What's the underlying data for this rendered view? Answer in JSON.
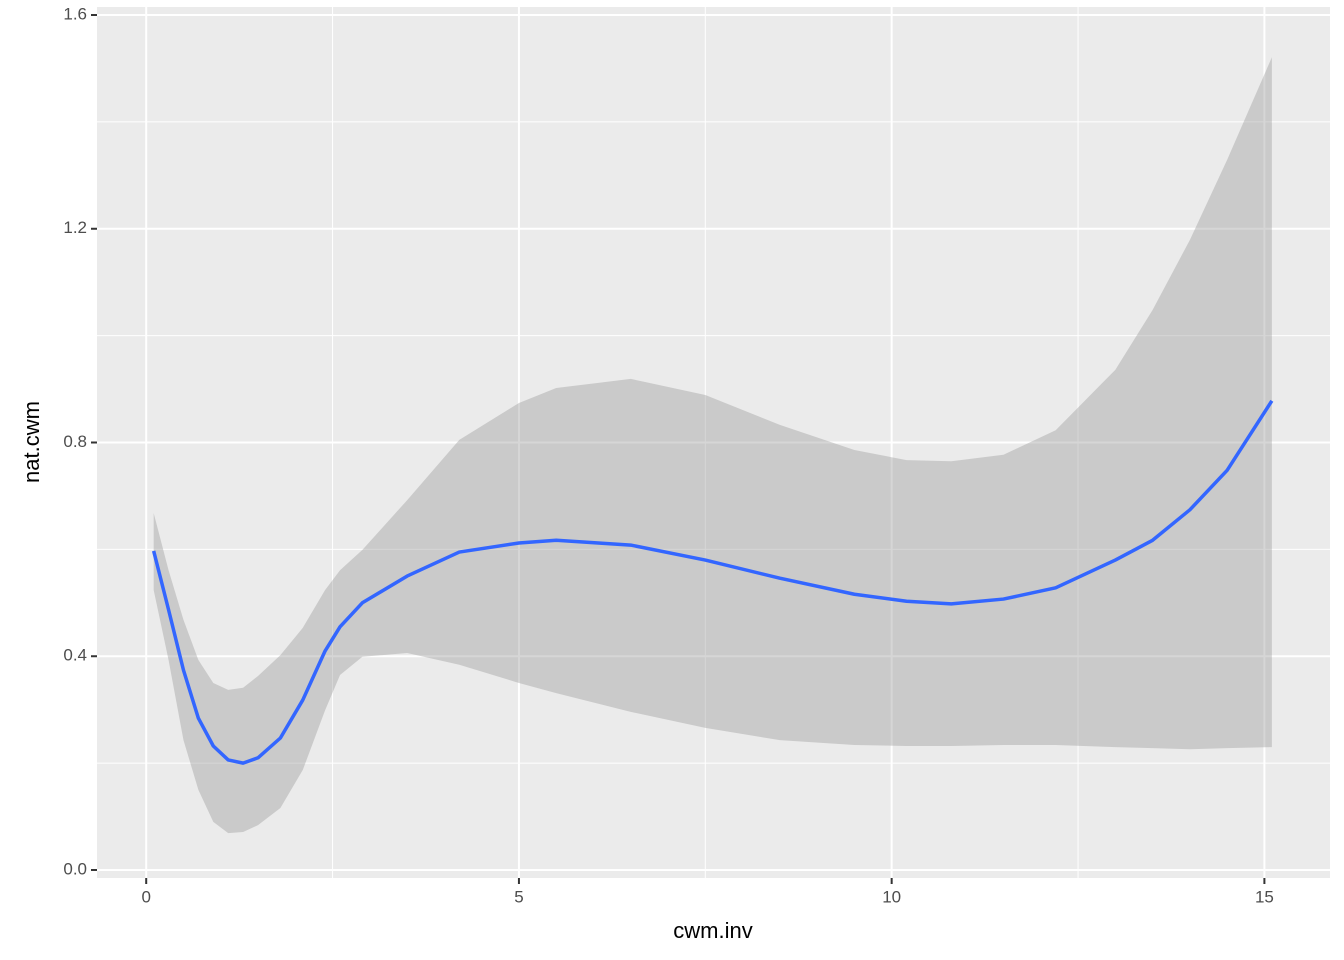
{
  "chart_data": {
    "type": "line",
    "xlabel": "cwm.inv",
    "ylabel": "nat.cwm",
    "x": [
      0.1,
      0.3,
      0.5,
      0.7,
      0.9,
      1.1,
      1.3,
      1.5,
      1.8,
      2.1,
      2.4,
      2.6,
      2.9,
      3.5,
      4.2,
      5.0,
      5.5,
      6.5,
      7.5,
      8.5,
      9.5,
      10.2,
      10.8,
      11.5,
      12.2,
      13.0,
      13.5,
      14.0,
      14.5,
      15.1
    ],
    "values": [
      0.597,
      0.487,
      0.374,
      0.284,
      0.232,
      0.206,
      0.2,
      0.21,
      0.247,
      0.318,
      0.41,
      0.455,
      0.5,
      0.55,
      0.595,
      0.612,
      0.617,
      0.608,
      0.58,
      0.546,
      0.516,
      0.503,
      0.498,
      0.507,
      0.528,
      0.58,
      0.617,
      0.674,
      0.748,
      0.878
    ],
    "upper": [
      0.668,
      0.561,
      0.468,
      0.393,
      0.35,
      0.337,
      0.341,
      0.363,
      0.402,
      0.453,
      0.524,
      0.561,
      0.599,
      0.692,
      0.805,
      0.874,
      0.902,
      0.919,
      0.889,
      0.833,
      0.786,
      0.767,
      0.765,
      0.777,
      0.823,
      0.936,
      1.048,
      1.179,
      1.329,
      1.521
    ],
    "lower": [
      0.524,
      0.393,
      0.243,
      0.15,
      0.09,
      0.069,
      0.071,
      0.084,
      0.116,
      0.187,
      0.299,
      0.365,
      0.399,
      0.406,
      0.384,
      0.35,
      0.331,
      0.296,
      0.266,
      0.243,
      0.234,
      0.232,
      0.232,
      0.234,
      0.234,
      0.23,
      0.228,
      0.226,
      0.228,
      0.23
    ],
    "color": "#3366ff",
    "band_color": "#999999",
    "band_alpha": 0.4,
    "xlim": [
      -0.66,
      15.88
    ],
    "ylim": [
      -0.015,
      1.615
    ],
    "xticks": [
      0,
      5,
      10,
      15
    ],
    "yticks": [
      {
        "value": 0,
        "label": "0.0"
      },
      0.4,
      0.8,
      1.2,
      1.6
    ],
    "xminor": [
      2.5,
      7.5,
      12.5
    ],
    "yminor": [
      0.2,
      0.6,
      1.0,
      1.4
    ],
    "grid": true
  }
}
